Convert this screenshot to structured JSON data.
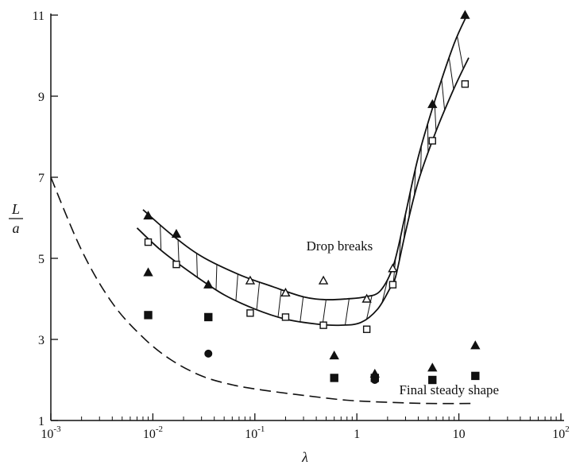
{
  "chart_data": {
    "type": "scatter",
    "x_scale": "log",
    "xlim": [
      0.001,
      100
    ],
    "ylim": [
      1,
      11
    ],
    "x_ticks": [
      {
        "value": 0.001,
        "base": "10",
        "exp": "-3"
      },
      {
        "value": 0.01,
        "base": "10",
        "exp": "-2"
      },
      {
        "value": 0.1,
        "base": "10",
        "exp": "-1"
      },
      {
        "value": 1,
        "base": "1",
        "exp": ""
      },
      {
        "value": 10,
        "base": "10",
        "exp": ""
      },
      {
        "value": 100,
        "base": "10",
        "exp": "2"
      }
    ],
    "y_ticks": [
      {
        "value": 1,
        "label": "1"
      },
      {
        "value": 3,
        "label": "3"
      },
      {
        "value": 5,
        "label": "5"
      },
      {
        "value": 7,
        "label": "7"
      },
      {
        "value": 9,
        "label": "9"
      },
      {
        "value": 11,
        "label": "11"
      }
    ],
    "xlabel": "λ",
    "ylabel_num": "L",
    "ylabel_den": "a",
    "grid": false,
    "annotations": [
      {
        "text": "Drop breaks",
        "x": 0.32,
        "y": 5.2
      },
      {
        "text": "Final steady shape",
        "x": 2.6,
        "y": 1.65
      }
    ],
    "series": [
      {
        "marker": "filled-triangle",
        "points": [
          [
            0.009,
            6.05
          ],
          [
            0.017,
            5.6
          ],
          [
            0.035,
            4.35
          ],
          [
            0.009,
            4.65
          ],
          [
            0.6,
            2.6
          ],
          [
            1.5,
            2.15
          ],
          [
            5.5,
            8.8
          ],
          [
            11.5,
            11.0
          ],
          [
            5.5,
            2.3
          ],
          [
            14.5,
            2.85
          ]
        ]
      },
      {
        "marker": "open-triangle",
        "points": [
          [
            0.09,
            4.45
          ],
          [
            0.2,
            4.15
          ],
          [
            0.47,
            4.45
          ],
          [
            1.25,
            4.0
          ],
          [
            2.25,
            4.75
          ]
        ]
      },
      {
        "marker": "open-square",
        "points": [
          [
            0.009,
            5.4
          ],
          [
            0.017,
            4.85
          ],
          [
            0.09,
            3.65
          ],
          [
            0.2,
            3.55
          ],
          [
            0.47,
            3.35
          ],
          [
            1.25,
            3.25
          ],
          [
            2.25,
            4.35
          ],
          [
            5.5,
            7.9
          ],
          [
            11.5,
            9.3
          ]
        ]
      },
      {
        "marker": "filled-square",
        "points": [
          [
            0.009,
            3.6
          ],
          [
            0.035,
            3.55
          ],
          [
            0.6,
            2.05
          ],
          [
            1.5,
            2.05
          ],
          [
            5.5,
            2.0
          ],
          [
            14.5,
            2.1
          ]
        ]
      },
      {
        "marker": "filled-circle",
        "points": [
          [
            0.035,
            2.65
          ],
          [
            1.5,
            2.0
          ]
        ]
      }
    ],
    "curves": {
      "band_upper": [
        [
          0.008,
          6.2
        ],
        [
          0.015,
          5.6
        ],
        [
          0.03,
          5.05
        ],
        [
          0.07,
          4.6
        ],
        [
          0.15,
          4.3
        ],
        [
          0.3,
          4.05
        ],
        [
          0.5,
          3.98
        ],
        [
          0.8,
          4.0
        ],
        [
          1.2,
          4.05
        ],
        [
          1.7,
          4.2
        ],
        [
          2.3,
          4.85
        ],
        [
          3.0,
          6.1
        ],
        [
          4.0,
          7.5
        ],
        [
          6.0,
          9.0
        ],
        [
          9.0,
          10.3
        ],
        [
          12.0,
          11.0
        ]
      ],
      "band_lower": [
        [
          0.007,
          5.75
        ],
        [
          0.012,
          5.2
        ],
        [
          0.025,
          4.6
        ],
        [
          0.05,
          4.1
        ],
        [
          0.1,
          3.75
        ],
        [
          0.2,
          3.5
        ],
        [
          0.4,
          3.38
        ],
        [
          0.7,
          3.35
        ],
        [
          1.1,
          3.42
        ],
        [
          1.6,
          3.75
        ],
        [
          2.1,
          4.25
        ],
        [
          2.4,
          4.55
        ],
        [
          3.0,
          5.65
        ],
        [
          4.0,
          6.9
        ],
        [
          6.0,
          8.15
        ],
        [
          9.0,
          9.2
        ],
        [
          12.5,
          9.95
        ]
      ],
      "dashed": [
        [
          0.001,
          7.0
        ],
        [
          0.002,
          5.2
        ],
        [
          0.004,
          3.9
        ],
        [
          0.008,
          3.05
        ],
        [
          0.015,
          2.5
        ],
        [
          0.03,
          2.1
        ],
        [
          0.06,
          1.88
        ],
        [
          0.12,
          1.75
        ],
        [
          0.3,
          1.62
        ],
        [
          0.8,
          1.5
        ],
        [
          2.0,
          1.45
        ],
        [
          5.0,
          1.42
        ],
        [
          13.0,
          1.42
        ]
      ]
    }
  }
}
